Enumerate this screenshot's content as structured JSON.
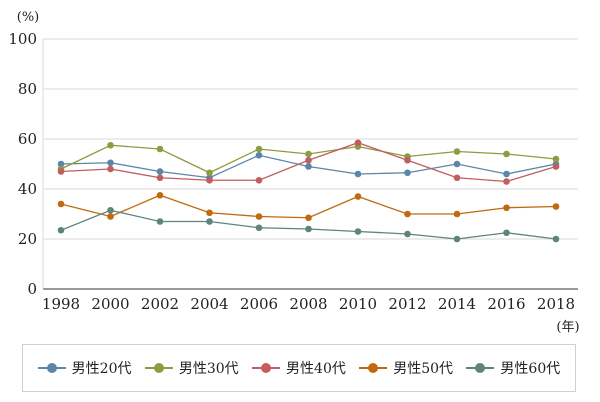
{
  "chart_data": {
    "type": "line",
    "title": "",
    "xlabel": "",
    "ylabel": "",
    "y_unit_label": "(%)",
    "x_unit_label": "(年)",
    "ylim": [
      0,
      100
    ],
    "yticks": [
      "0",
      "20",
      "40",
      "60",
      "80",
      "100"
    ],
    "categories": [
      "1998",
      "2000",
      "2002",
      "2004",
      "2006",
      "2008",
      "2010",
      "2012",
      "2014",
      "2016",
      "2018"
    ],
    "grid": true,
    "legend_position": "bottom",
    "series": [
      {
        "name": "男性20代",
        "color": "#5b86a8",
        "values": [
          50.0,
          50.5,
          47.0,
          44.5,
          53.5,
          49.0,
          46.0,
          46.5,
          50.0,
          46.0,
          50.0
        ]
      },
      {
        "name": "男性30代",
        "color": "#8c9c3e",
        "values": [
          48.0,
          57.5,
          56.0,
          46.5,
          56.0,
          54.0,
          57.0,
          53.0,
          55.0,
          54.0,
          52.0
        ]
      },
      {
        "name": "男性40代",
        "color": "#c05e60",
        "values": [
          47.0,
          48.0,
          44.5,
          43.5,
          43.5,
          51.5,
          58.5,
          51.5,
          44.5,
          43.0,
          49.0
        ]
      },
      {
        "name": "男性50代",
        "color": "#c0690f",
        "values": [
          34.0,
          29.0,
          37.5,
          30.5,
          29.0,
          28.5,
          37.0,
          30.0,
          30.0,
          32.5,
          33.0
        ]
      },
      {
        "name": "男性60代",
        "color": "#5e857a",
        "values": [
          23.5,
          31.5,
          27.0,
          27.0,
          24.5,
          24.0,
          23.0,
          22.0,
          20.0,
          22.5,
          20.0
        ]
      }
    ]
  }
}
